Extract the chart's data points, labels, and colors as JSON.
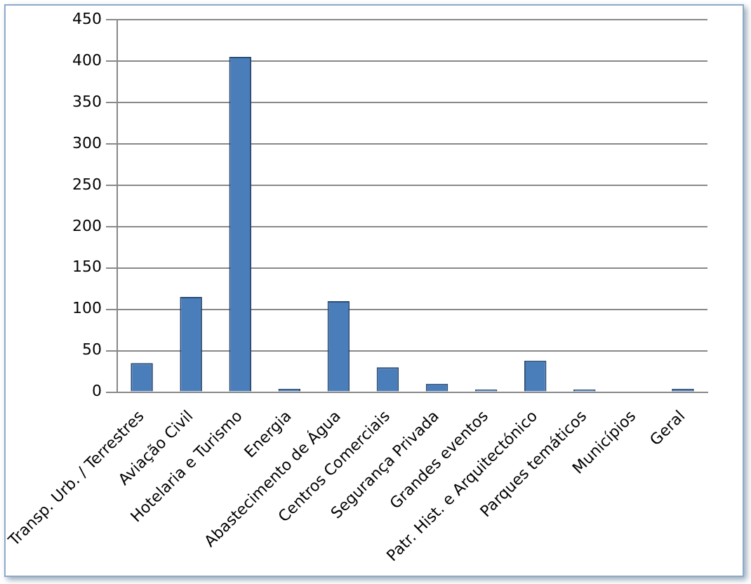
{
  "chart_data": {
    "type": "bar",
    "categories": [
      "Transp. Urb. / Terrestres",
      "Aviação Civil",
      "Hotelaria e Turismo",
      "Energia",
      "Abastecimento de Água",
      "Centros Comerciais",
      "Segurança Privada",
      "Grandes eventos",
      "Patr. Hist. e Arquitectónico",
      "Parques temáticos",
      "Municípios",
      "Geral"
    ],
    "values": [
      35,
      115,
      405,
      4,
      110,
      30,
      10,
      3,
      38,
      3,
      1,
      4
    ],
    "color": "#4a7ebb",
    "ylim": [
      0,
      450
    ],
    "yticks": [
      0,
      50,
      100,
      150,
      200,
      250,
      300,
      350,
      400,
      450
    ],
    "grid": "y",
    "legend": false
  }
}
